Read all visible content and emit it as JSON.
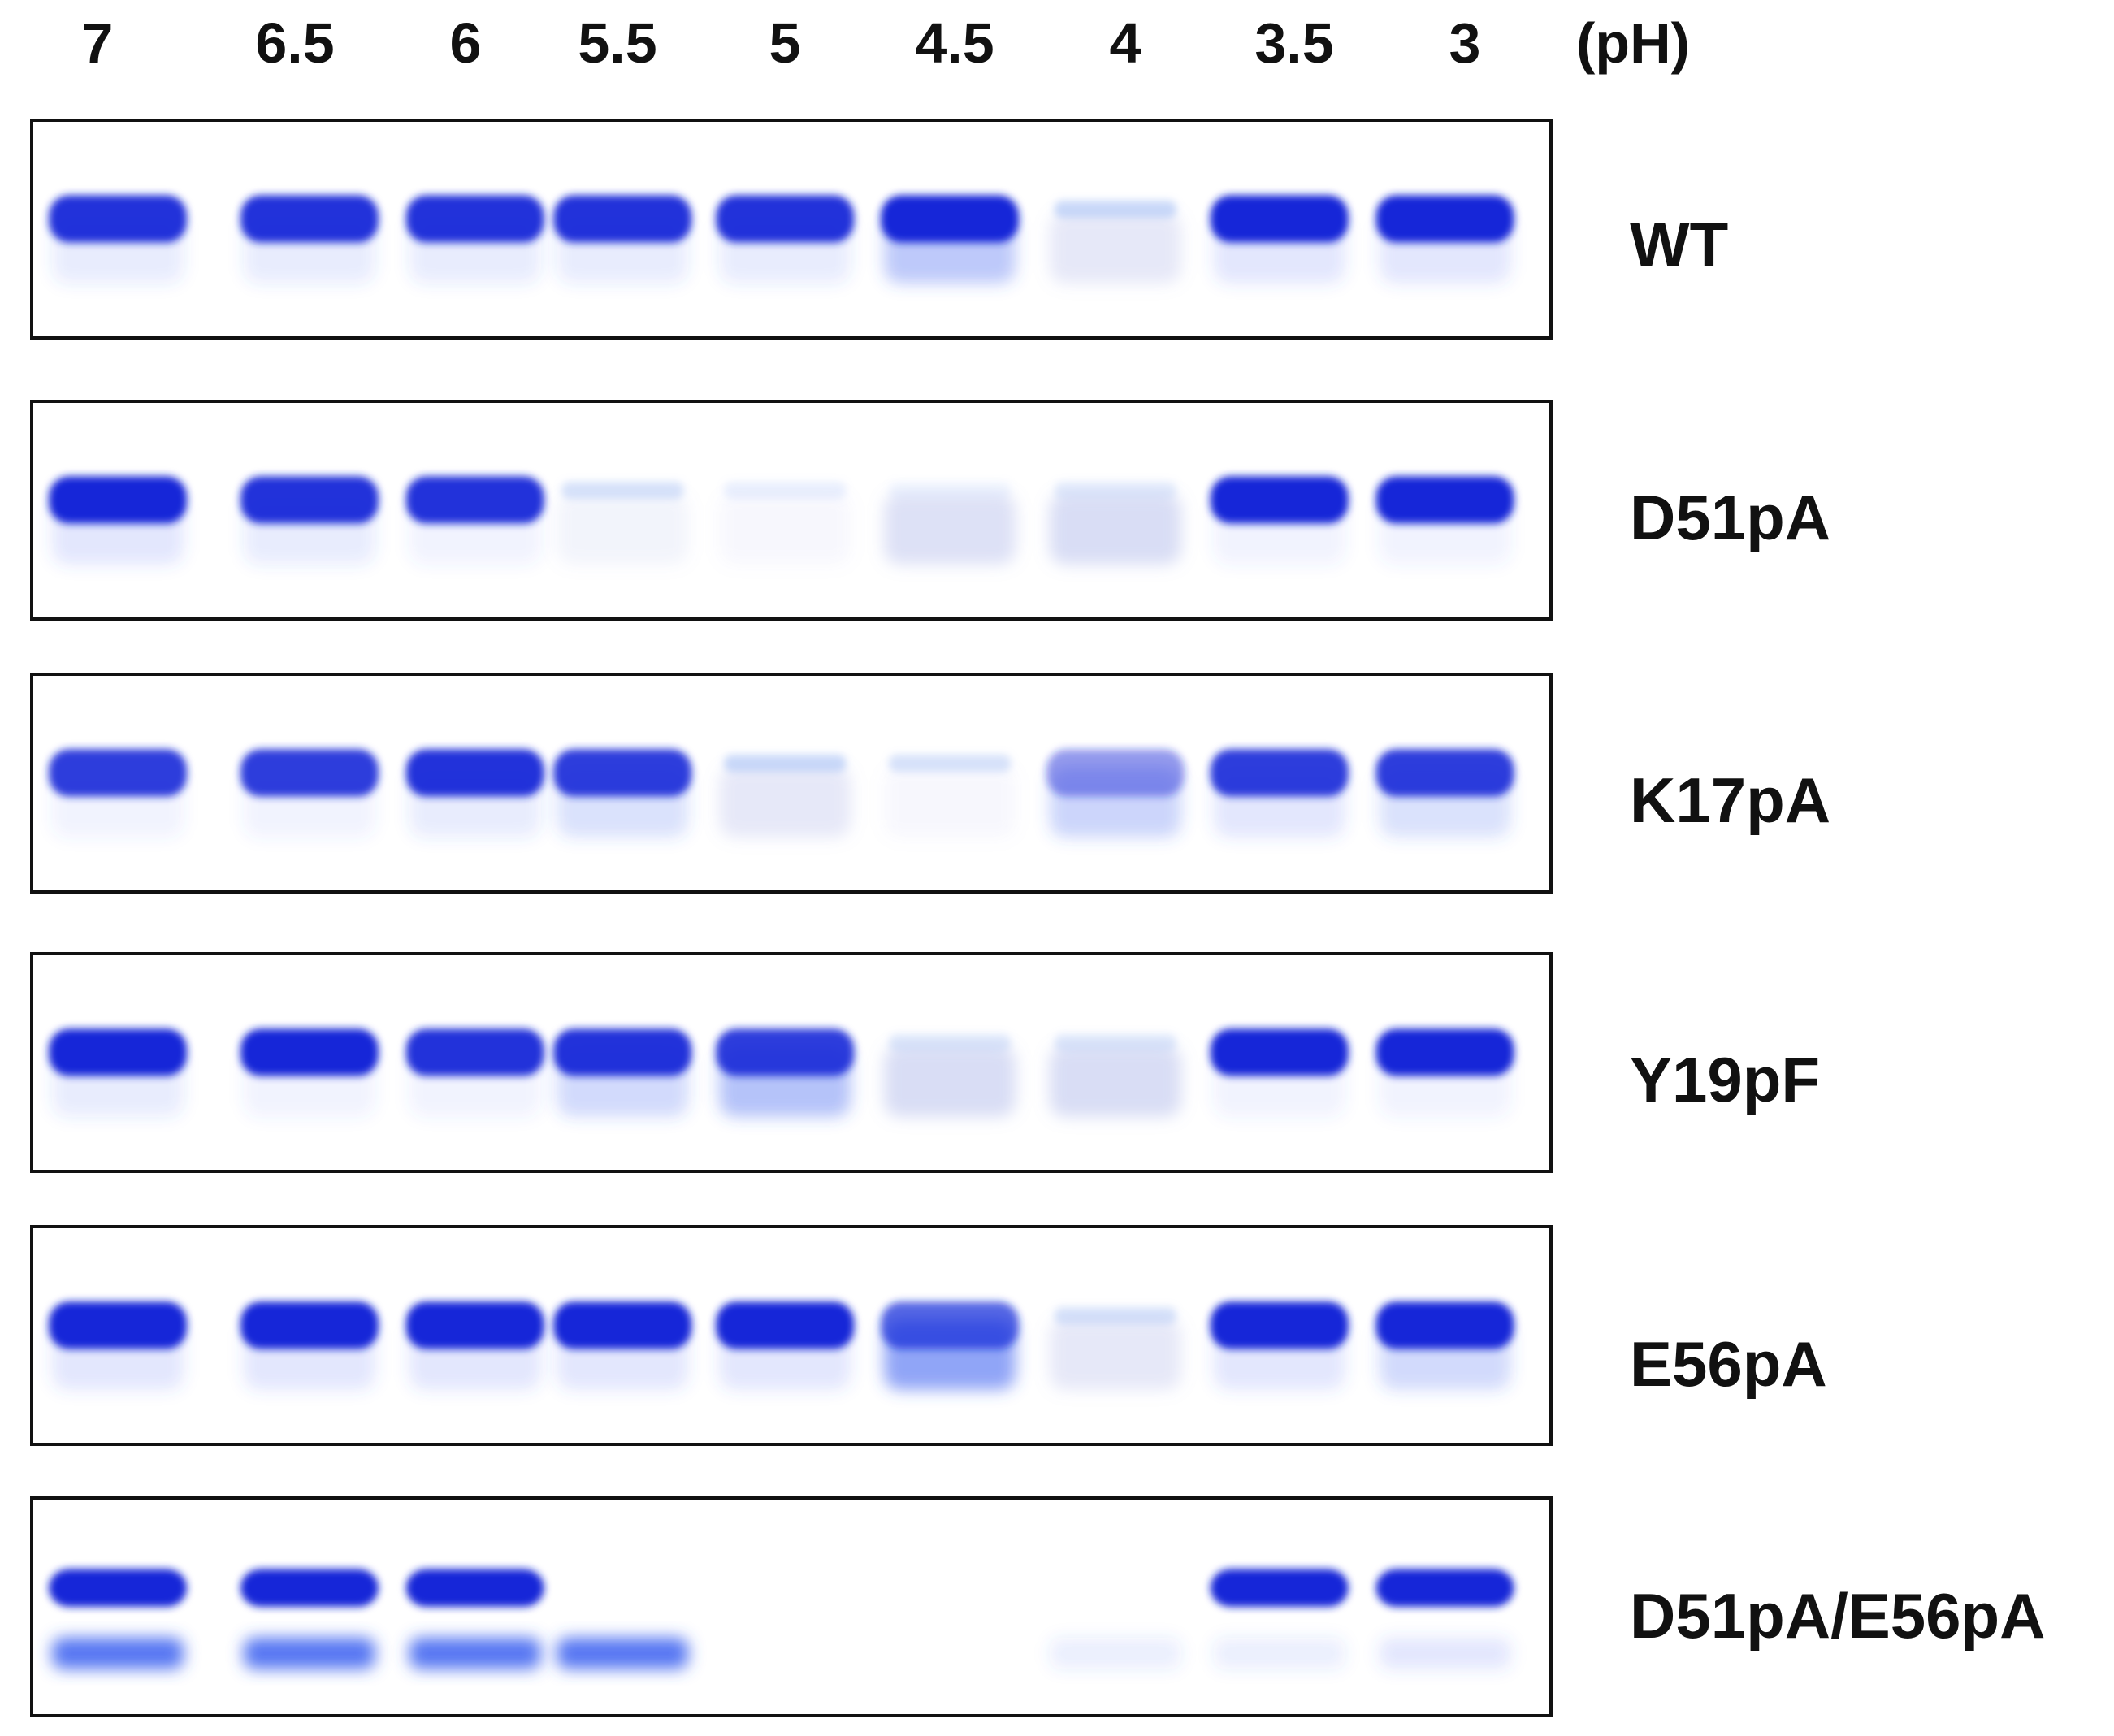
{
  "ph_unit": "(pH)",
  "ph_values": [
    "7",
    "6.5",
    "6",
    "5.5",
    "5",
    "4.5",
    "4",
    "3.5",
    "3"
  ],
  "colors": {
    "band_strong": "#1428d8",
    "band_mid": "#3a5ff0",
    "band_faint": "#a9c2f5",
    "band_smear": "#8d9ae0"
  },
  "panels": [
    {
      "label": "WT",
      "bands": [
        {
          "main": 0.95,
          "smear": 0.15
        },
        {
          "main": 0.95,
          "smear": 0.15
        },
        {
          "main": 0.95,
          "smear": 0.15
        },
        {
          "main": 0.95,
          "smear": 0.15
        },
        {
          "main": 0.95,
          "smear": 0.15
        },
        {
          "main": 1.0,
          "smear": 0.45
        },
        {
          "main": 0.2,
          "smear": 0.3
        },
        {
          "main": 1.0,
          "smear": 0.2
        },
        {
          "main": 1.0,
          "smear": 0.2
        }
      ]
    },
    {
      "label": "D51pA",
      "bands": [
        {
          "main": 1.0,
          "smear": 0.2
        },
        {
          "main": 0.95,
          "smear": 0.15
        },
        {
          "main": 0.95,
          "smear": 0.1
        },
        {
          "main": 0.15,
          "smear": 0.15
        },
        {
          "main": 0.08,
          "smear": 0.1
        },
        {
          "main": 0.05,
          "smear": 0.4
        },
        {
          "main": 0.1,
          "smear": 0.45
        },
        {
          "main": 1.0,
          "smear": 0.1
        },
        {
          "main": 1.0,
          "smear": 0.1
        }
      ]
    },
    {
      "label": "K17pA",
      "bands": [
        {
          "main": 0.9,
          "smear": 0.1
        },
        {
          "main": 0.9,
          "smear": 0.1
        },
        {
          "main": 0.95,
          "smear": 0.15
        },
        {
          "main": 0.9,
          "smear": 0.25
        },
        {
          "main": 0.2,
          "smear": 0.3
        },
        {
          "main": 0.15,
          "smear": 0.1
        },
        {
          "main": 0.45,
          "smear": 0.35
        },
        {
          "main": 0.9,
          "smear": 0.2
        },
        {
          "main": 0.9,
          "smear": 0.25
        }
      ]
    },
    {
      "label": "Y19pF",
      "bands": [
        {
          "main": 1.0,
          "smear": 0.15
        },
        {
          "main": 1.0,
          "smear": 0.1
        },
        {
          "main": 0.95,
          "smear": 0.1
        },
        {
          "main": 0.95,
          "smear": 0.3
        },
        {
          "main": 0.9,
          "smear": 0.5
        },
        {
          "main": 0.12,
          "smear": 0.45
        },
        {
          "main": 0.12,
          "smear": 0.45
        },
        {
          "main": 1.0,
          "smear": 0.1
        },
        {
          "main": 1.0,
          "smear": 0.1
        }
      ]
    },
    {
      "label": "E56pA",
      "bands": [
        {
          "main": 1.0,
          "smear": 0.2
        },
        {
          "main": 1.0,
          "smear": 0.2
        },
        {
          "main": 1.0,
          "smear": 0.2
        },
        {
          "main": 1.0,
          "smear": 0.2
        },
        {
          "main": 1.0,
          "smear": 0.2
        },
        {
          "main": 0.7,
          "smear": 0.75
        },
        {
          "main": 0.15,
          "smear": 0.3
        },
        {
          "main": 1.0,
          "smear": 0.2
        },
        {
          "main": 1.0,
          "smear": 0.3
        }
      ]
    },
    {
      "label": "D51pA/E56pA",
      "bands": [
        {
          "main": 1.0,
          "smear": 0.85
        },
        {
          "main": 1.0,
          "smear": 0.85
        },
        {
          "main": 1.0,
          "smear": 0.85
        },
        {
          "main": 0.0,
          "smear": 0.85
        },
        {
          "main": 0.0,
          "smear": 0.0
        },
        {
          "main": 0.0,
          "smear": 0.0
        },
        {
          "main": 0.0,
          "smear": 0.1
        },
        {
          "main": 1.0,
          "smear": 0.1
        },
        {
          "main": 1.0,
          "smear": 0.15
        }
      ]
    }
  ]
}
